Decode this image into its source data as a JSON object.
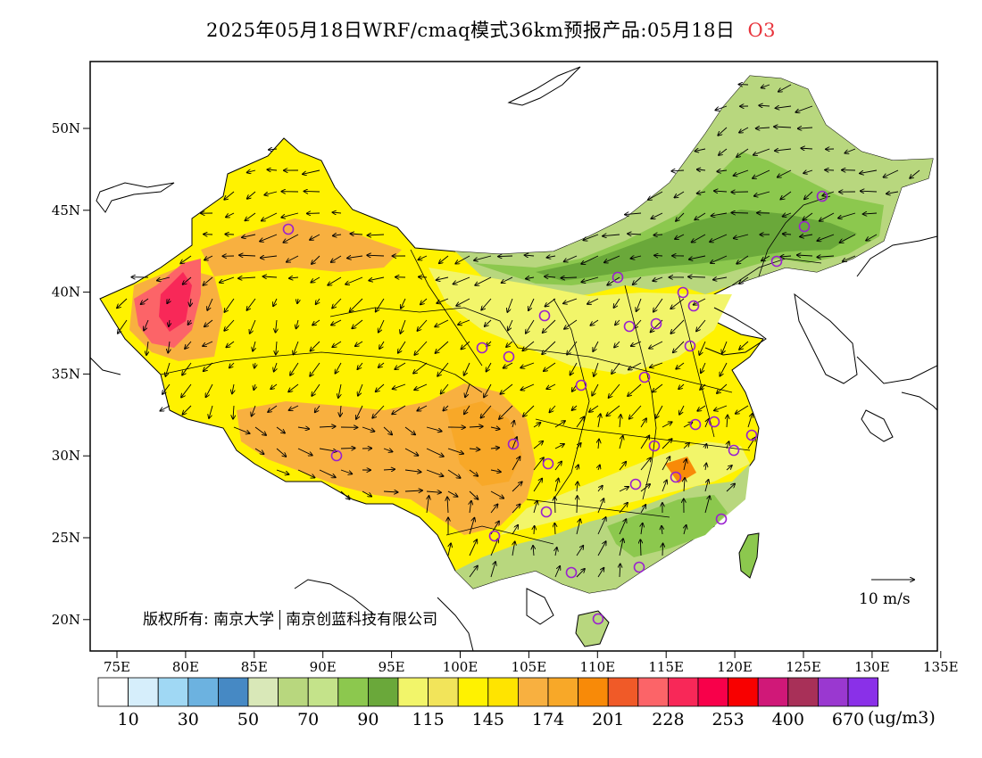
{
  "title": {
    "main": "2025年05月18日WRF/cmaq模式36km预报产品:05月18日",
    "pollutant": "O3"
  },
  "axes": {
    "longitudes": [
      "75E",
      "80E",
      "85E",
      "90E",
      "95E",
      "100E",
      "105E",
      "110E",
      "115E",
      "120E",
      "125E",
      "130E",
      "135E"
    ],
    "latitudes": [
      "50N",
      "45N",
      "40N",
      "35N",
      "30N",
      "25N",
      "20N"
    ]
  },
  "copyright": {
    "prefix": "版权所有: 南京大学",
    "company": "南京创蓝科技有限公司"
  },
  "wind_scale": {
    "label": "10  m/s"
  },
  "legend": {
    "colors": [
      "#ffffff",
      "#d6eefb",
      "#a0d8f4",
      "#6cb2e0",
      "#4689c4",
      "#d9e8b8",
      "#b8d77e",
      "#c4e38a",
      "#8cc84e",
      "#6aa83a",
      "#f2f56a",
      "#f2e45a",
      "#fff200",
      "#ffe400",
      "#f8b040",
      "#f8a828",
      "#f88a08",
      "#f05a28",
      "#fc6468",
      "#f82858",
      "#f8004a",
      "#f80000",
      "#d01878",
      "#a83058",
      "#9a38d0",
      "#8a30e8"
    ],
    "ticks": [
      "10",
      "30",
      "50",
      "70",
      "90",
      "115",
      "145",
      "174",
      "201",
      "228",
      "253",
      "400",
      "670"
    ],
    "unit": "(ug/m3)"
  }
}
